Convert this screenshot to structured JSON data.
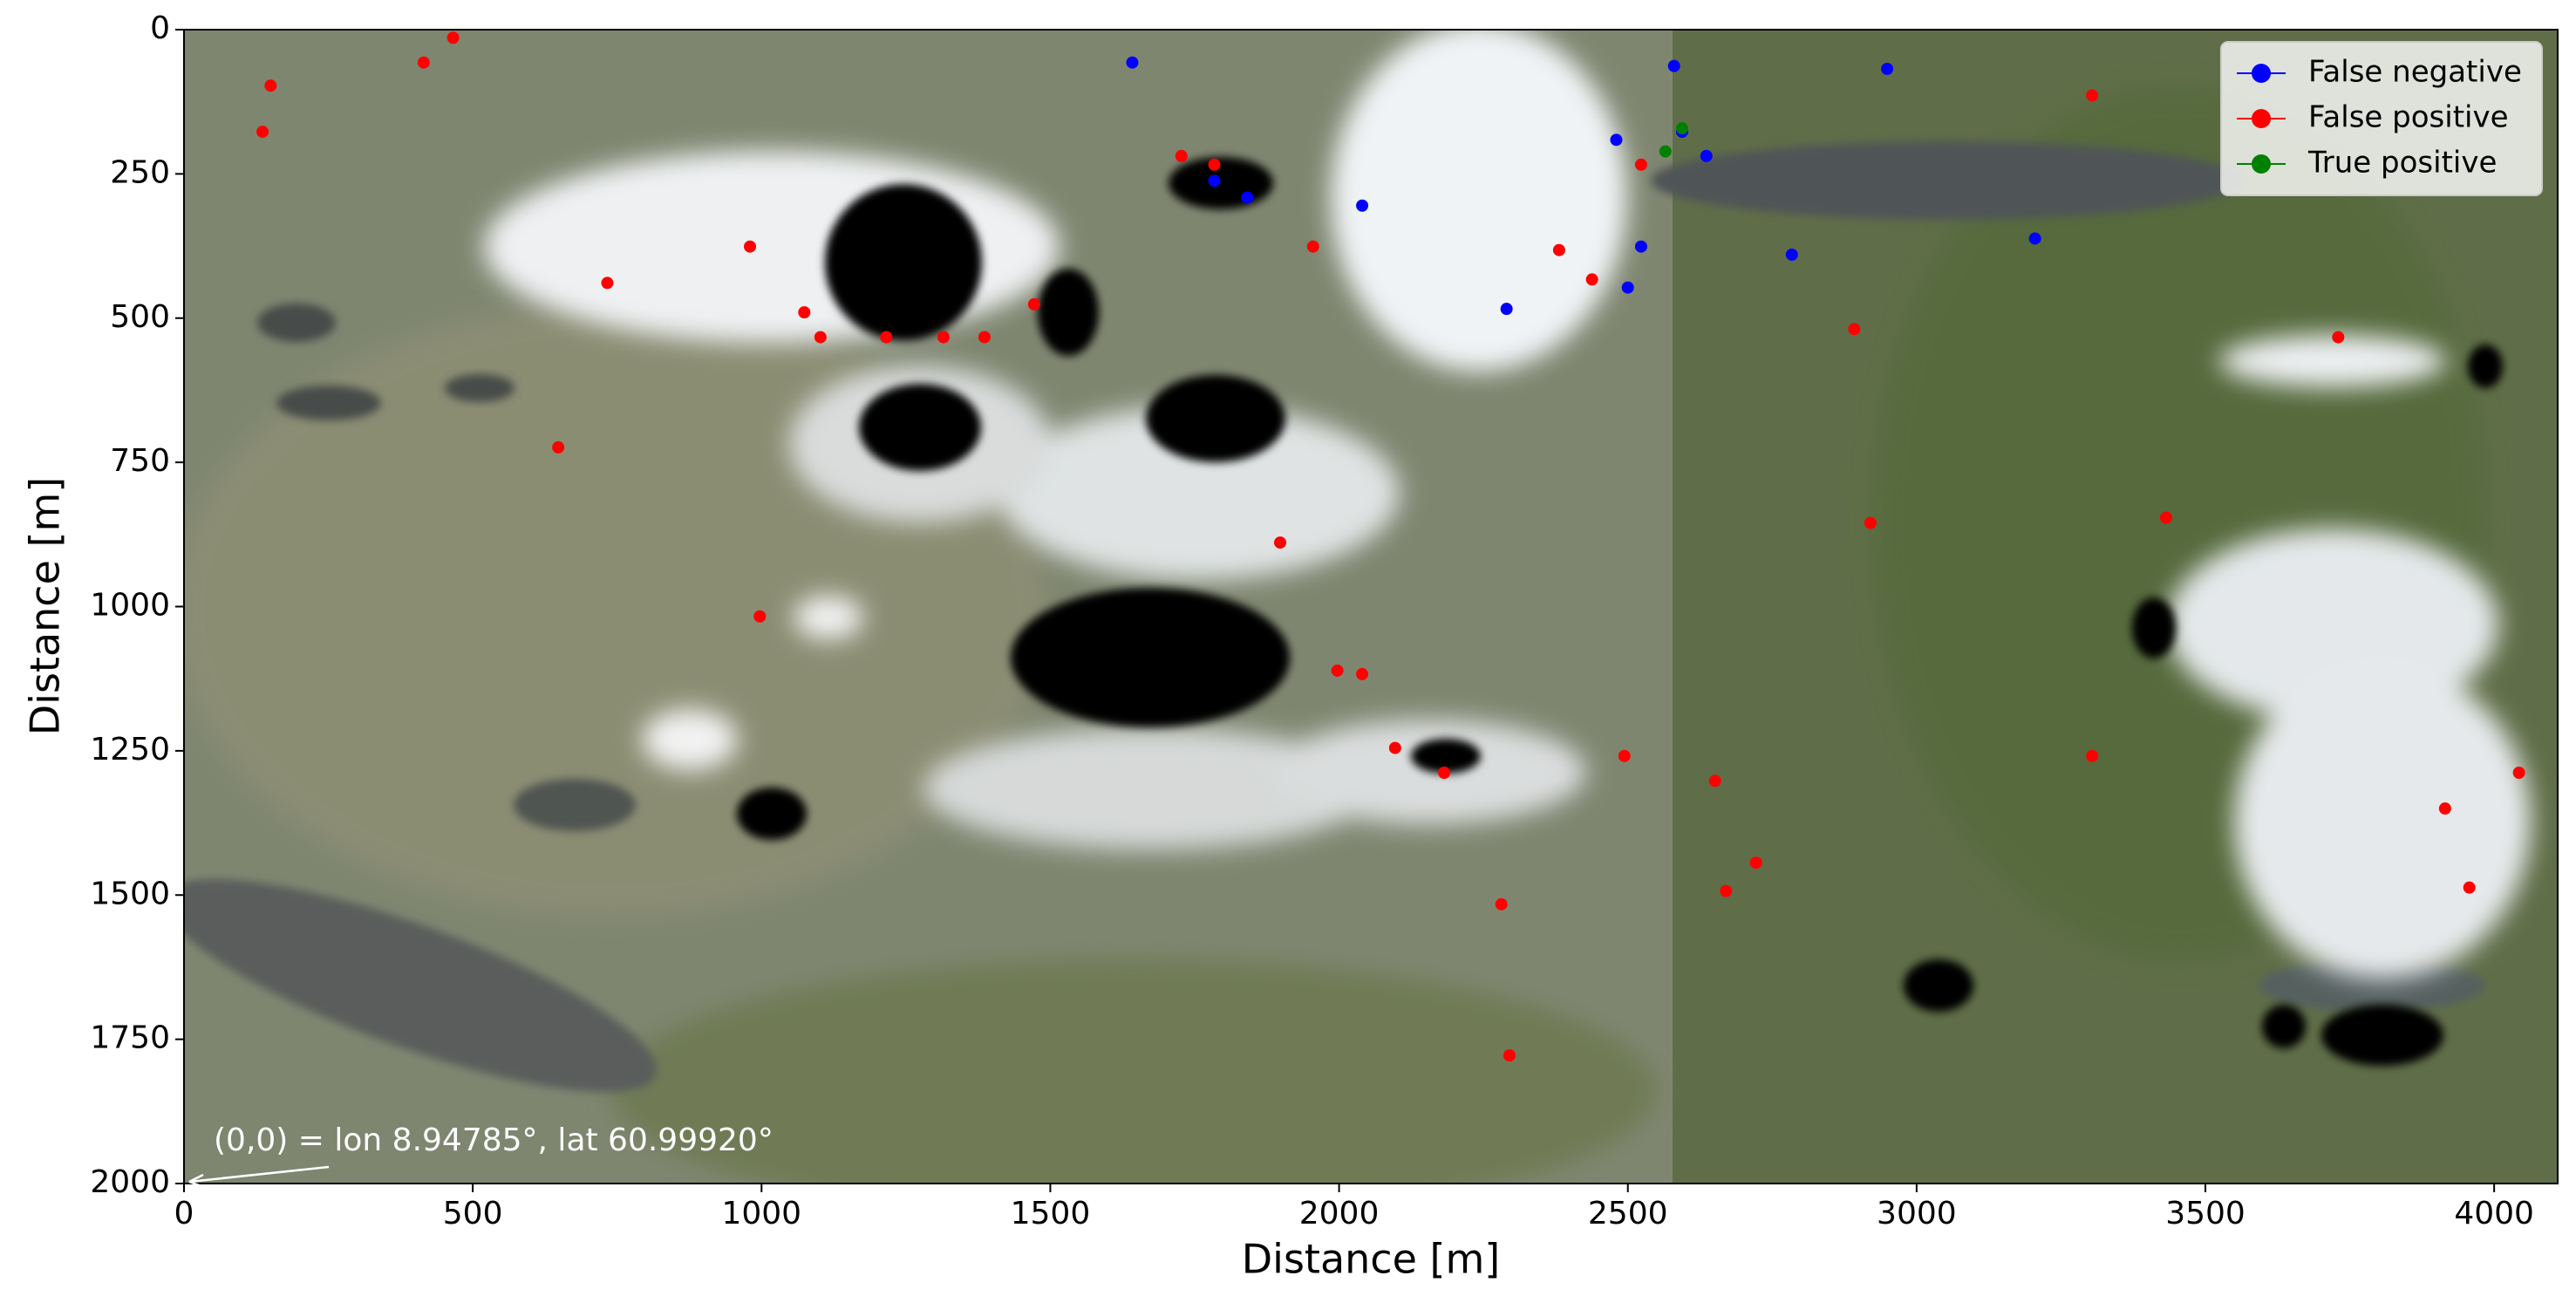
{
  "chart_data": {
    "type": "scatter",
    "xlabel": "Distance [m]",
    "ylabel": "Distance [m]",
    "xlim": [
      0,
      4110
    ],
    "ylim": [
      2000,
      0
    ],
    "xticks": [
      0,
      500,
      1000,
      1500,
      2000,
      2500,
      3000,
      3500,
      4000
    ],
    "yticks": [
      0,
      250,
      500,
      750,
      1000,
      1250,
      1500,
      1750,
      2000
    ],
    "grid": false,
    "legend": "upper right",
    "annotations": [
      {
        "text": "(0,0) = lon 8.94785°, lat 60.99920°"
      }
    ],
    "series": [
      {
        "name": "False negative",
        "color": "#0000ff",
        "x": [
          1642,
          1784,
          1841,
          2040,
          2480,
          2523,
          2500,
          2636,
          2784,
          2949,
          3205,
          2580,
          2290,
          2594
        ],
        "y": [
          57,
          262,
          291,
          305,
          191,
          376,
          447,
          219,
          390,
          68,
          362,
          63,
          484,
          177
        ]
      },
      {
        "name": "False positive",
        "color": "#ff0000",
        "x": [
          150,
          136,
          466,
          415,
          733,
          980,
          1074,
          1102,
          1216,
          1315,
          1386,
          1472,
          1727,
          1784,
          1955,
          1898,
          1997,
          2040,
          2097,
          2182,
          2281,
          2381,
          2438,
          2523,
          2494,
          2670,
          2722,
          2892,
          2920,
          3304,
          3432,
          3730,
          3915,
          3957,
          4043,
          997,
          2295,
          648,
          3304,
          2651
        ],
        "y": [
          97,
          177,
          14,
          57,
          439,
          376,
          490,
          533,
          533,
          533,
          533,
          476,
          219,
          234,
          376,
          889,
          1111,
          1117,
          1245,
          1288,
          1516,
          382,
          433,
          234,
          1259,
          1493,
          1444,
          519,
          855,
          1259,
          846,
          533,
          1350,
          1487,
          1288,
          1017,
          1778,
          724,
          114,
          1302
        ]
      },
      {
        "name": "True positive",
        "color": "#008000",
        "x": [
          2565,
          2594
        ],
        "y": [
          211,
          171
        ]
      }
    ]
  }
}
